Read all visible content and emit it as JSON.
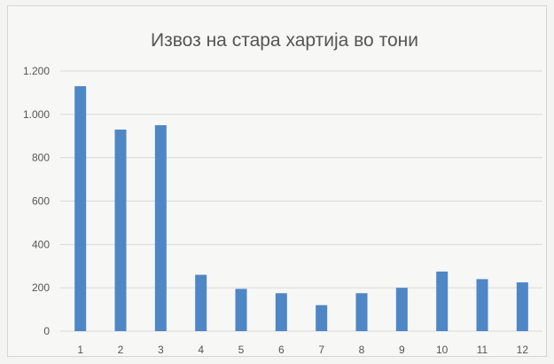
{
  "chart_data": {
    "type": "bar",
    "title": "Извоз на стара хартија во тони",
    "categories": [
      "1",
      "2",
      "3",
      "4",
      "5",
      "6",
      "7",
      "8",
      "9",
      "10",
      "11",
      "12"
    ],
    "values": [
      1130,
      930,
      950,
      260,
      195,
      175,
      120,
      175,
      200,
      275,
      240,
      225
    ],
    "xlabel": "",
    "ylabel": "",
    "ylim": [
      0,
      1200
    ],
    "yticks": [
      0,
      200,
      400,
      600,
      800,
      1000,
      1200
    ],
    "ytick_labels": [
      "0",
      "200",
      "400",
      "600",
      "800",
      "1.000",
      "1.200"
    ],
    "grid": true,
    "legend": "none",
    "bar_color": "#4f86c6"
  }
}
